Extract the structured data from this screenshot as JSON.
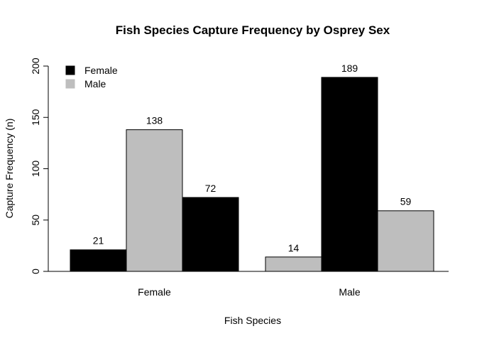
{
  "chart_data": {
    "type": "bar",
    "title": "Fish Species Capture Frequency by Osprey Sex",
    "xlabel": "Fish Species",
    "ylabel": "Capture Frequency (n)",
    "ylim": [
      0,
      200
    ],
    "yticks": [
      0,
      50,
      100,
      150,
      200
    ],
    "categories": [
      "Female",
      "Male"
    ],
    "groups": [
      {
        "label": "Female",
        "bars": [
          {
            "value": 21,
            "color": "#000000"
          },
          {
            "value": 138,
            "color": "#bebebe"
          },
          {
            "value": 72,
            "color": "#000000"
          }
        ]
      },
      {
        "label": "Male",
        "bars": [
          {
            "value": 14,
            "color": "#bebebe"
          },
          {
            "value": 189,
            "color": "#000000"
          },
          {
            "value": 59,
            "color": "#bebebe"
          }
        ]
      }
    ],
    "legend": {
      "position": "top-left",
      "entries": [
        {
          "name": "Female",
          "color": "#000000"
        },
        {
          "name": "Male",
          "color": "#bebebe"
        }
      ]
    },
    "grid": false
  }
}
